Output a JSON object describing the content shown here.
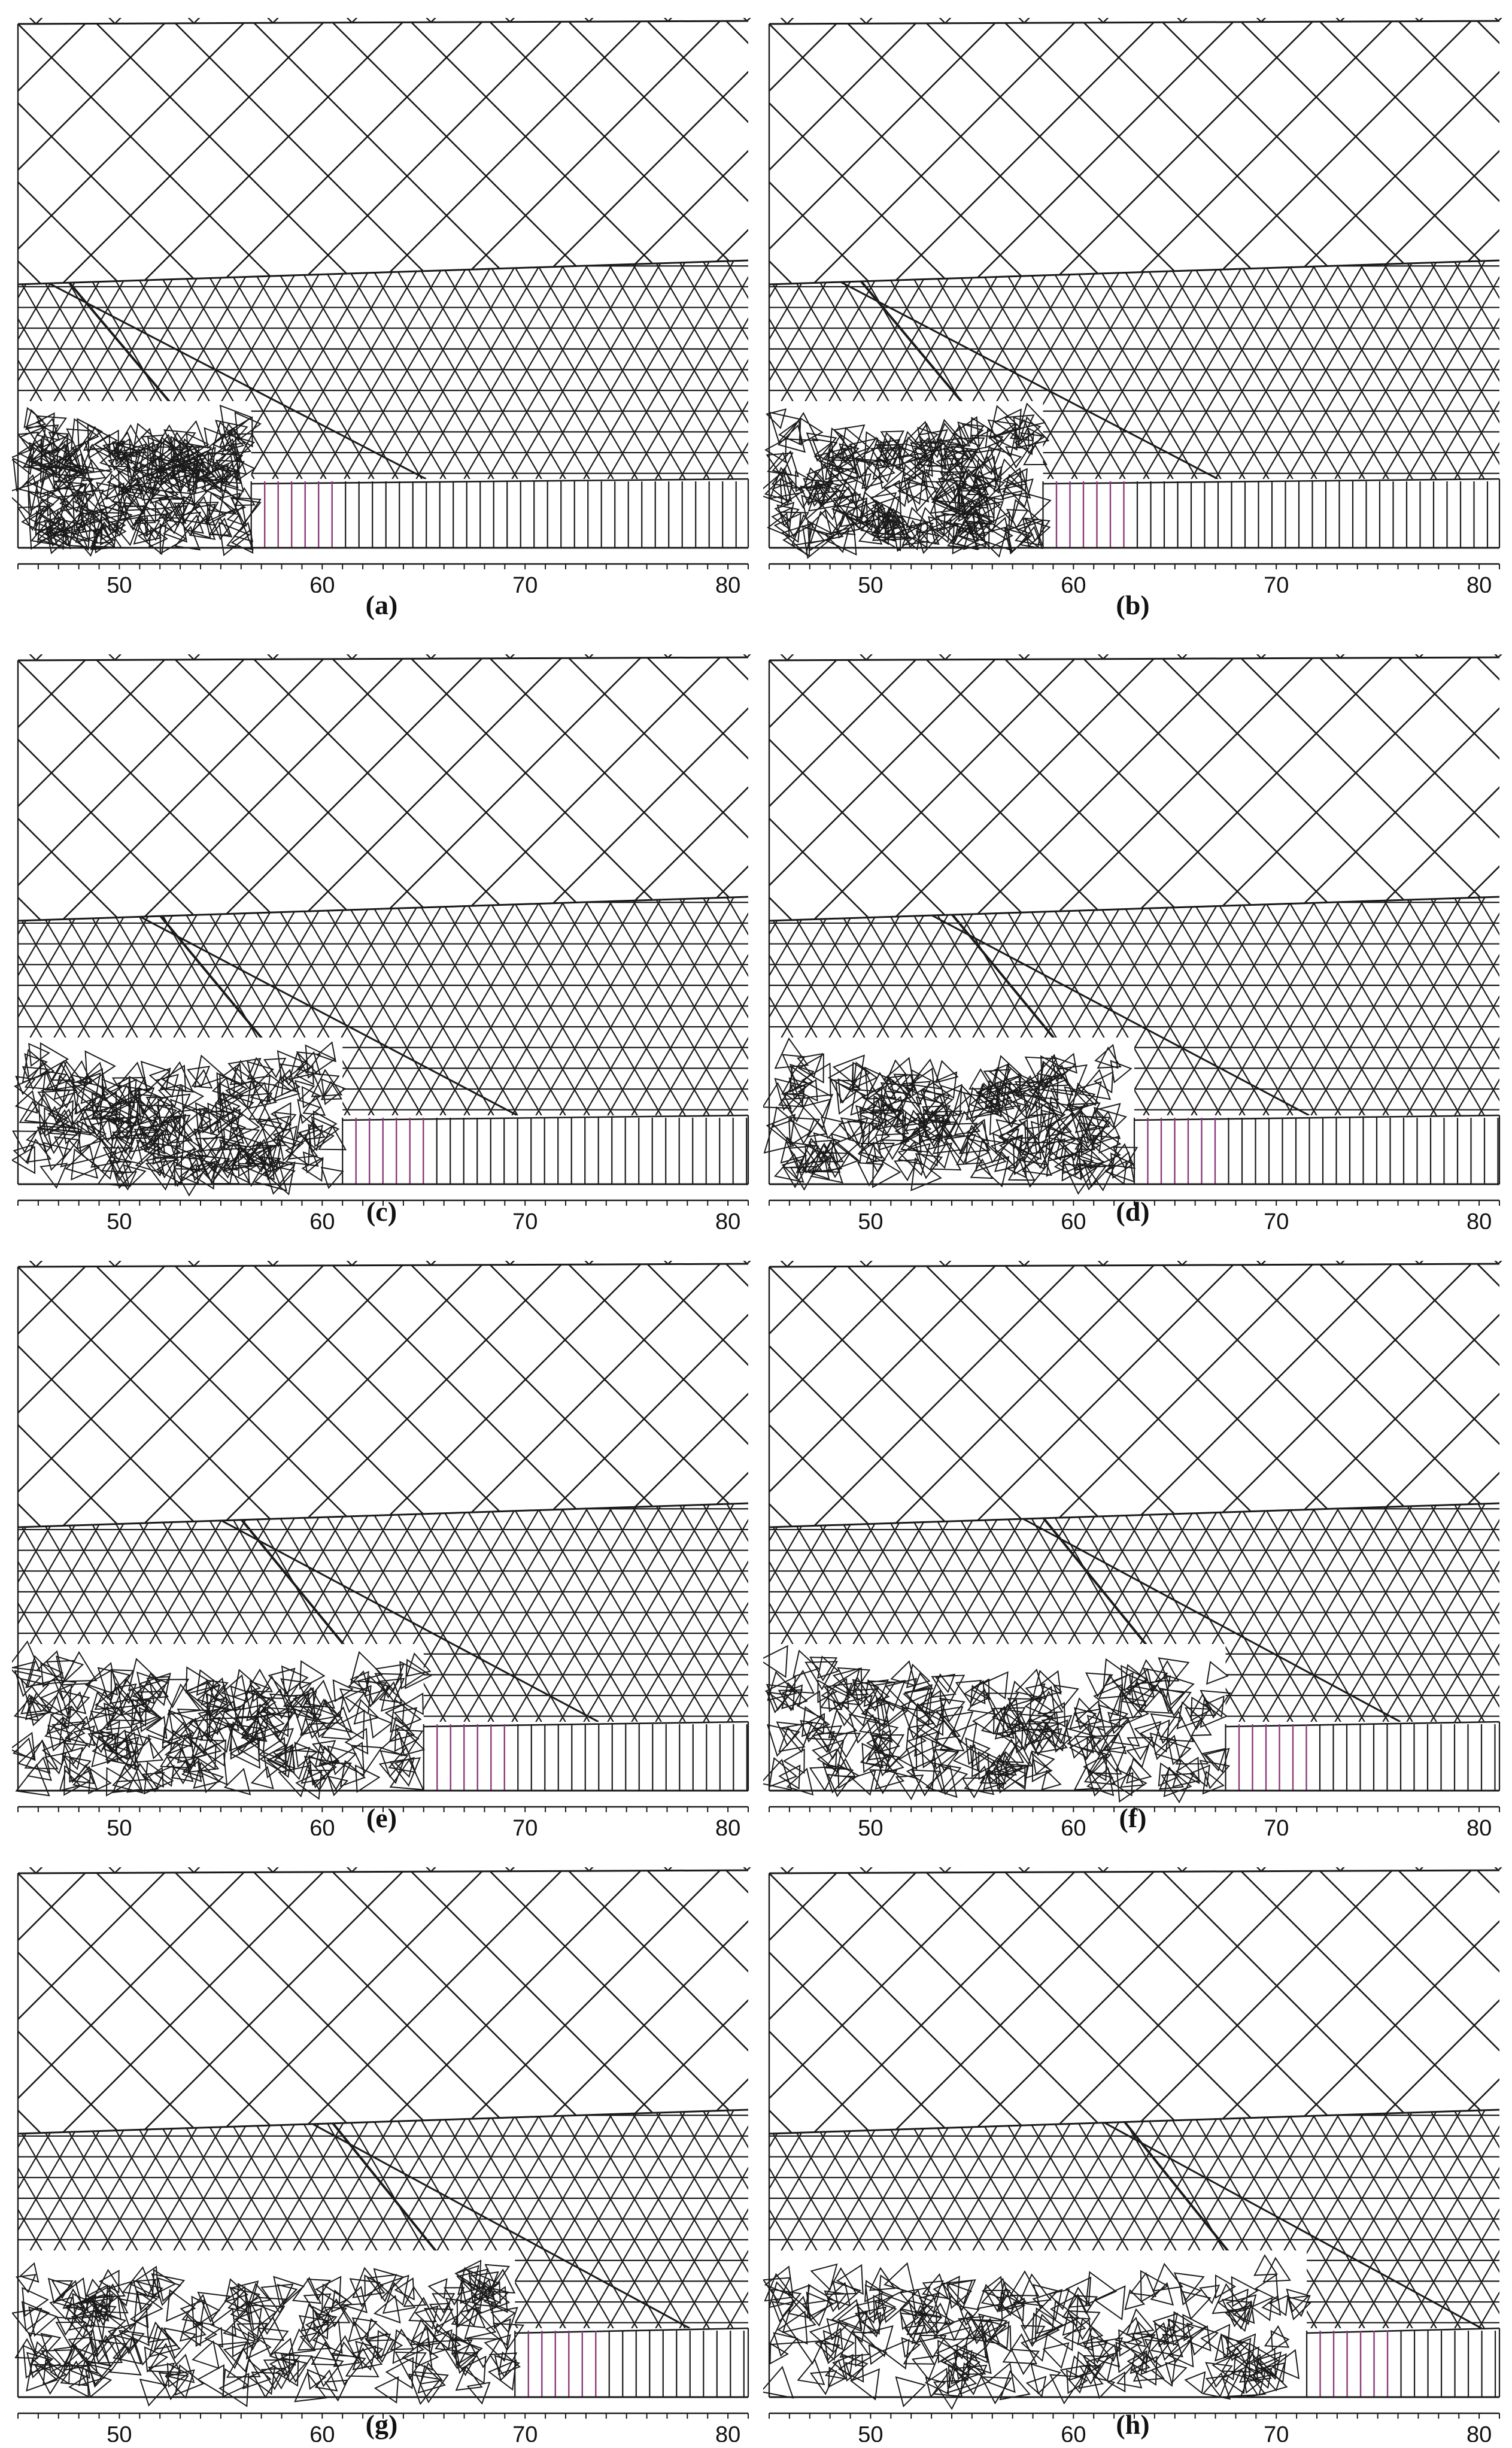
{
  "figure": {
    "panels": [
      {
        "caption": "(a)",
        "axis_ticks": [
          "50",
          "60",
          "70",
          "80"
        ],
        "excavation_face_position": 56.5
      },
      {
        "caption": "(b)",
        "axis_ticks": [
          "50",
          "60",
          "70",
          "80"
        ],
        "excavation_face_position": 58.5
      },
      {
        "caption": "(c)",
        "axis_ticks": [
          "50",
          "60",
          "70",
          "80"
        ],
        "excavation_face_position": 61.0
      },
      {
        "caption": "(d)",
        "axis_ticks": [
          "50",
          "60",
          "70",
          "80"
        ],
        "excavation_face_position": 63.0
      },
      {
        "caption": "(e)",
        "axis_ticks": [
          "50",
          "60",
          "70",
          "80"
        ],
        "excavation_face_position": 65.0
      },
      {
        "caption": "(f)",
        "axis_ticks": [
          "50",
          "60",
          "70",
          "80"
        ],
        "excavation_face_position": 67.5
      },
      {
        "caption": "(g)",
        "axis_ticks": [
          "50",
          "60",
          "70",
          "80"
        ],
        "excavation_face_position": 69.5
      },
      {
        "caption": "(h)",
        "axis_ticks": [
          "50",
          "60",
          "70",
          "80"
        ],
        "excavation_face_position": 71.5
      }
    ],
    "colors": {
      "lines": "#1a1a1a",
      "support": "#8a3a7a",
      "background": "#ffffff"
    }
  }
}
